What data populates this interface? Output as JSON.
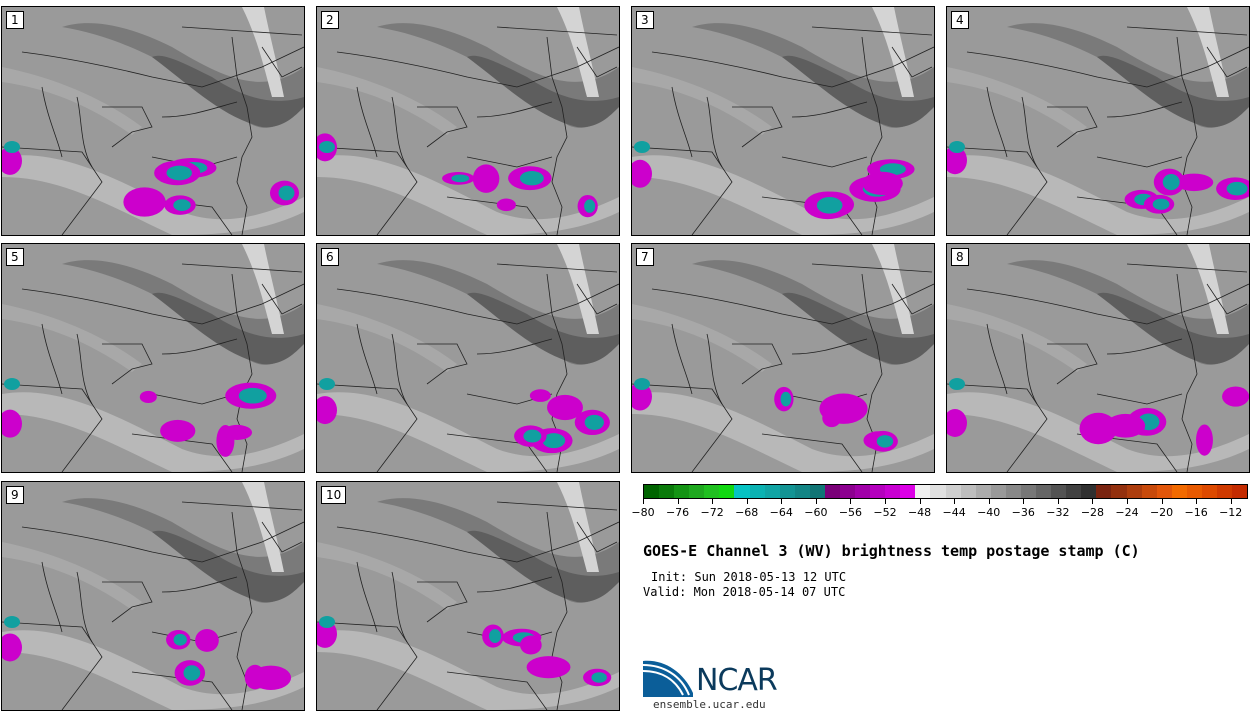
{
  "panels": [
    {
      "label": "1"
    },
    {
      "label": "2"
    },
    {
      "label": "3"
    },
    {
      "label": "4"
    },
    {
      "label": "5"
    },
    {
      "label": "6"
    },
    {
      "label": "7"
    },
    {
      "label": "8"
    },
    {
      "label": "9"
    },
    {
      "label": "10"
    }
  ],
  "colorbar": {
    "colors": [
      "#006400",
      "#0a7a0a",
      "#149414",
      "#1ea81e",
      "#20c020",
      "#11d811",
      "#06c3c3",
      "#0bb2b2",
      "#10a4a4",
      "#129494",
      "#128585",
      "#107575",
      "#7a0078",
      "#8c0090",
      "#a000a8",
      "#b400be",
      "#c800d2",
      "#dc00e6",
      "#f0f0f0",
      "#e0e0e0",
      "#cfcfcf",
      "#bdbdbd",
      "#ababab",
      "#999999",
      "#888888",
      "#777777",
      "#656565",
      "#535353",
      "#414141",
      "#303030",
      "#7a2410",
      "#93300e",
      "#ad3d0d",
      "#c84a0b",
      "#e2560a",
      "#f26a00",
      "#e85a00",
      "#dd4a00",
      "#cf3a00",
      "#c42b00"
    ],
    "min": -80,
    "max": -10,
    "tick_labels": [
      "−80",
      "−76",
      "−72",
      "−68",
      "−64",
      "−60",
      "−56",
      "−52",
      "−48",
      "−44",
      "−40",
      "−36",
      "−32",
      "−28",
      "−24",
      "−20",
      "−16",
      "−12"
    ]
  },
  "title": "GOES-E Channel 3 (WV) brightness temp postage stamp (C)",
  "init": "Init: Sun 2018-05-13 12 UTC",
  "valid": "Valid: Mon 2018-05-14 07 UTC",
  "logo": {
    "text": "NCAR",
    "site": "ensemble.ucar.edu",
    "brand_color": "#0b5e99"
  }
}
